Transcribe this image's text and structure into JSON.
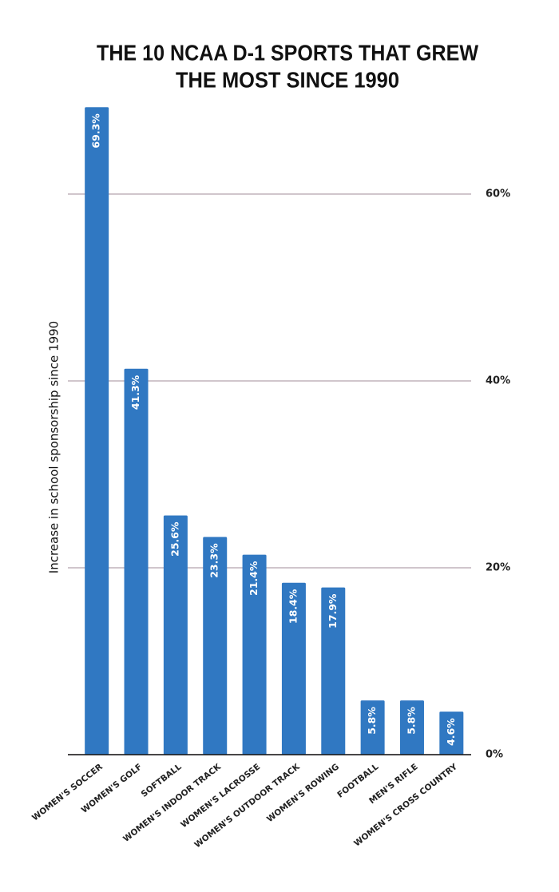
{
  "chart_data": {
    "type": "bar",
    "title": [
      "THE 10 NCAA D-1 SPORTS THAT GREW",
      "THE MOST SINCE 1990"
    ],
    "y_label": "Increase in school sponsorship since 1990",
    "categories": [
      "WOMEN'S SOCCER",
      "WOMEN'S GOLF",
      "SOFTBALL",
      "WOMEN'S INDOOR TRACK",
      "WOMEN'S LACROSSE",
      "WOMEN'S OUTDOOR TRACK",
      "WOMEN'S ROWING",
      "FOOTBALL",
      "MEN'S RIFLE",
      "WOMEN'S CROSS COUNTRY"
    ],
    "values": [
      69.3,
      41.3,
      25.6,
      23.3,
      21.4,
      18.4,
      17.9,
      5.8,
      5.8,
      4.6
    ],
    "value_labels": [
      "69.3%",
      "41.3%",
      "25.6%",
      "23.3%",
      "21.4%",
      "18.4%",
      "17.9%",
      "5.8%",
      "5.8%",
      "4.6%"
    ],
    "color": "#3078c2",
    "ylim": [
      0,
      70
    ],
    "yticks": [
      {
        "value": 0,
        "label": "0%"
      },
      {
        "value": 20,
        "label": "20%"
      },
      {
        "value": 40,
        "label": "40%"
      },
      {
        "value": 60,
        "label": "60%"
      }
    ],
    "grid": true
  }
}
